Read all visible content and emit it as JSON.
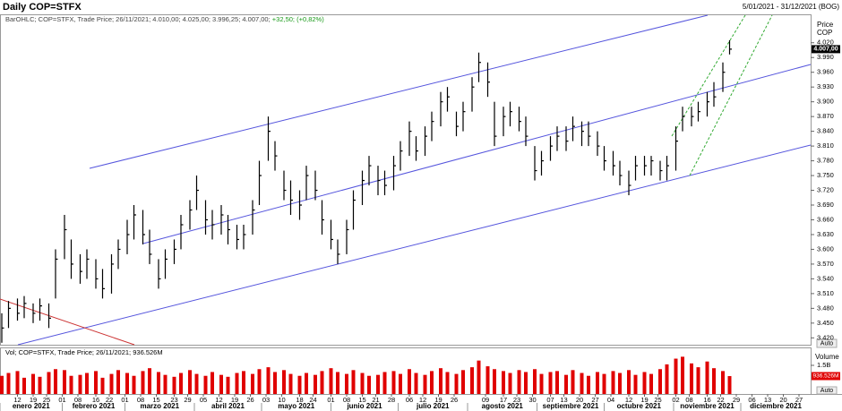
{
  "ui": {
    "auto": "Auto"
  },
  "chart_data": [
    {
      "type": "ohlc",
      "title": "Daily COP=STFX",
      "date_range": "5/01/2021 - 31/12/2021 (BOG)",
      "subtitle": "BarOHLC; COP=STFX, Trade Price; 26/11/2021; 4.010,00; 4.025,00; 3.996,25; 4.007,00;",
      "change": "+32,50; (+0,82%)",
      "y_axis_label": [
        "Price",
        "COP"
      ],
      "color": "#000000",
      "last_label": "4.007,00",
      "xlim": [
        "2021-01-05",
        "2021-12-31"
      ],
      "ylim": [
        3406,
        4076
      ],
      "x": [
        "2021-01-05",
        "2021-01-08",
        "2021-01-12",
        "2021-01-15",
        "2021-01-19",
        "2021-01-22",
        "2021-01-26",
        "2021-01-29",
        "2021-02-02",
        "2021-02-05",
        "2021-02-09",
        "2021-02-12",
        "2021-02-16",
        "2021-02-19",
        "2021-02-23",
        "2021-02-26",
        "2021-03-02",
        "2021-03-05",
        "2021-03-09",
        "2021-03-12",
        "2021-03-16",
        "2021-03-19",
        "2021-03-23",
        "2021-03-26",
        "2021-03-30",
        "2021-04-02",
        "2021-04-06",
        "2021-04-09",
        "2021-04-13",
        "2021-04-16",
        "2021-04-20",
        "2021-04-23",
        "2021-04-27",
        "2021-04-30",
        "2021-05-04",
        "2021-05-07",
        "2021-05-11",
        "2021-05-14",
        "2021-05-18",
        "2021-05-21",
        "2021-05-25",
        "2021-05-28",
        "2021-06-01",
        "2021-06-04",
        "2021-06-08",
        "2021-06-11",
        "2021-06-15",
        "2021-06-18",
        "2021-06-22",
        "2021-06-25",
        "2021-06-29",
        "2021-07-02",
        "2021-07-06",
        "2021-07-09",
        "2021-07-13",
        "2021-07-16",
        "2021-07-20",
        "2021-07-23",
        "2021-07-27",
        "2021-07-30",
        "2021-08-03",
        "2021-08-06",
        "2021-08-10",
        "2021-08-13",
        "2021-08-17",
        "2021-08-20",
        "2021-08-24",
        "2021-08-27",
        "2021-08-31",
        "2021-09-03",
        "2021-09-07",
        "2021-09-10",
        "2021-09-14",
        "2021-09-17",
        "2021-09-21",
        "2021-09-24",
        "2021-09-28",
        "2021-10-01",
        "2021-10-05",
        "2021-10-08",
        "2021-10-12",
        "2021-10-15",
        "2021-10-19",
        "2021-10-22",
        "2021-10-26",
        "2021-10-29",
        "2021-11-02",
        "2021-11-05",
        "2021-11-09",
        "2021-11-12",
        "2021-11-16",
        "2021-11-19",
        "2021-11-23",
        "2021-11-26"
      ],
      "high": [
        3470,
        3495,
        3500,
        3505,
        3490,
        3500,
        3490,
        3600,
        3670,
        3620,
        3590,
        3600,
        3580,
        3560,
        3590,
        3620,
        3660,
        3690,
        3680,
        3640,
        3580,
        3600,
        3620,
        3670,
        3700,
        3750,
        3700,
        3680,
        3690,
        3670,
        3650,
        3650,
        3700,
        3780,
        3870,
        3820,
        3760,
        3740,
        3720,
        3770,
        3760,
        3700,
        3660,
        3620,
        3660,
        3720,
        3760,
        3790,
        3770,
        3760,
        3790,
        3820,
        3860,
        3830,
        3850,
        3880,
        3920,
        3930,
        3880,
        3900,
        3950,
        4000,
        3980,
        3900,
        3890,
        3900,
        3890,
        3870,
        3810,
        3800,
        3830,
        3850,
        3850,
        3870,
        3860,
        3860,
        3840,
        3810,
        3800,
        3780,
        3760,
        3790,
        3790,
        3790,
        3780,
        3790,
        3850,
        3890,
        3890,
        3900,
        3920,
        3940,
        3980,
        4025
      ],
      "low": [
        3410,
        3440,
        3455,
        3460,
        3450,
        3455,
        3440,
        3500,
        3580,
        3540,
        3530,
        3540,
        3520,
        3500,
        3510,
        3560,
        3590,
        3620,
        3610,
        3570,
        3520,
        3540,
        3570,
        3600,
        3640,
        3680,
        3630,
        3620,
        3630,
        3610,
        3600,
        3600,
        3630,
        3690,
        3780,
        3760,
        3700,
        3670,
        3660,
        3700,
        3700,
        3630,
        3600,
        3570,
        3590,
        3640,
        3690,
        3730,
        3710,
        3710,
        3720,
        3760,
        3790,
        3780,
        3790,
        3820,
        3850,
        3880,
        3830,
        3840,
        3880,
        3940,
        3910,
        3810,
        3830,
        3850,
        3840,
        3810,
        3740,
        3750,
        3780,
        3800,
        3800,
        3820,
        3810,
        3810,
        3790,
        3760,
        3750,
        3730,
        3710,
        3740,
        3750,
        3750,
        3740,
        3740,
        3760,
        3840,
        3850,
        3860,
        3870,
        3890,
        3920,
        3996.25
      ],
      "close": [
        3440,
        3480,
        3470,
        3490,
        3470,
        3485,
        3460,
        3580,
        3640,
        3570,
        3555,
        3580,
        3540,
        3520,
        3570,
        3600,
        3630,
        3670,
        3630,
        3590,
        3540,
        3580,
        3600,
        3650,
        3680,
        3720,
        3660,
        3650,
        3670,
        3640,
        3620,
        3630,
        3680,
        3750,
        3840,
        3790,
        3720,
        3700,
        3690,
        3750,
        3720,
        3660,
        3620,
        3590,
        3640,
        3700,
        3740,
        3770,
        3740,
        3730,
        3770,
        3800,
        3840,
        3800,
        3830,
        3860,
        3900,
        3910,
        3850,
        3880,
        3930,
        3980,
        3940,
        3830,
        3870,
        3880,
        3860,
        3830,
        3760,
        3780,
        3810,
        3830,
        3820,
        3850,
        3840,
        3830,
        3810,
        3780,
        3770,
        3750,
        3730,
        3770,
        3770,
        3780,
        3760,
        3770,
        3820,
        3870,
        3870,
        3880,
        3900,
        3910,
        3960,
        4007
      ],
      "yticks": [
        {
          "value": 4020,
          "label": "4.020"
        },
        {
          "value": 3990,
          "label": "3.990"
        },
        {
          "value": 3960,
          "label": "3.960"
        },
        {
          "value": 3930,
          "label": "3.930"
        },
        {
          "value": 3900,
          "label": "3.900"
        },
        {
          "value": 3870,
          "label": "3.870"
        },
        {
          "value": 3840,
          "label": "3.840"
        },
        {
          "value": 3810,
          "label": "3.810"
        },
        {
          "value": 3780,
          "label": "3.780"
        },
        {
          "value": 3750,
          "label": "3.750"
        },
        {
          "value": 3720,
          "label": "3.720"
        },
        {
          "value": 3690,
          "label": "3.690"
        },
        {
          "value": 3660,
          "label": "3.660"
        },
        {
          "value": 3630,
          "label": "3.630"
        },
        {
          "value": 3600,
          "label": "3.600"
        },
        {
          "value": 3570,
          "label": "3.570"
        },
        {
          "value": 3540,
          "label": "3.540"
        },
        {
          "value": 3510,
          "label": "3.510"
        },
        {
          "value": 3480,
          "label": "3.480"
        },
        {
          "value": 3450,
          "label": "3.450"
        },
        {
          "value": 3420,
          "label": "3.420"
        }
      ],
      "xticks": [
        {
          "value": "2021-01-12",
          "label": "12"
        },
        {
          "value": "2021-01-19",
          "label": "19"
        },
        {
          "value": "2021-01-25",
          "label": "25"
        },
        {
          "value": "2021-02-01",
          "label": "01"
        },
        {
          "value": "2021-02-08",
          "label": "08"
        },
        {
          "value": "2021-02-16",
          "label": "16"
        },
        {
          "value": "2021-02-22",
          "label": "22"
        },
        {
          "value": "2021-03-01",
          "label": "01"
        },
        {
          "value": "2021-03-08",
          "label": "08"
        },
        {
          "value": "2021-03-15",
          "label": "15"
        },
        {
          "value": "2021-03-23",
          "label": "23"
        },
        {
          "value": "2021-03-29",
          "label": "29"
        },
        {
          "value": "2021-04-05",
          "label": "05"
        },
        {
          "value": "2021-04-12",
          "label": "12"
        },
        {
          "value": "2021-04-19",
          "label": "19"
        },
        {
          "value": "2021-04-26",
          "label": "26"
        },
        {
          "value": "2021-05-03",
          "label": "03"
        },
        {
          "value": "2021-05-10",
          "label": "10"
        },
        {
          "value": "2021-05-18",
          "label": "18"
        },
        {
          "value": "2021-05-24",
          "label": "24"
        },
        {
          "value": "2021-06-01",
          "label": "01"
        },
        {
          "value": "2021-06-08",
          "label": "08"
        },
        {
          "value": "2021-06-15",
          "label": "15"
        },
        {
          "value": "2021-06-21",
          "label": "21"
        },
        {
          "value": "2021-06-28",
          "label": "28"
        },
        {
          "value": "2021-07-06",
          "label": "06"
        },
        {
          "value": "2021-07-12",
          "label": "12"
        },
        {
          "value": "2021-07-19",
          "label": "19"
        },
        {
          "value": "2021-07-26",
          "label": "26"
        },
        {
          "value": "2021-08-09",
          "label": "09"
        },
        {
          "value": "2021-08-17",
          "label": "17"
        },
        {
          "value": "2021-08-23",
          "label": "23"
        },
        {
          "value": "2021-08-30",
          "label": "30"
        },
        {
          "value": "2021-09-07",
          "label": "07"
        },
        {
          "value": "2021-09-13",
          "label": "13"
        },
        {
          "value": "2021-09-20",
          "label": "20"
        },
        {
          "value": "2021-09-27",
          "label": "27"
        },
        {
          "value": "2021-10-04",
          "label": "04"
        },
        {
          "value": "2021-10-12",
          "label": "12"
        },
        {
          "value": "2021-10-19",
          "label": "19"
        },
        {
          "value": "2021-10-25",
          "label": "25"
        },
        {
          "value": "2021-11-02",
          "label": "02"
        },
        {
          "value": "2021-11-08",
          "label": "08"
        },
        {
          "value": "2021-11-16",
          "label": "16"
        },
        {
          "value": "2021-11-22",
          "label": "22"
        },
        {
          "value": "2021-11-29",
          "label": "29"
        },
        {
          "value": "2021-12-06",
          "label": "06"
        },
        {
          "value": "2021-12-13",
          "label": "13"
        },
        {
          "value": "2021-12-20",
          "label": "20"
        },
        {
          "value": "2021-12-27",
          "label": "27"
        }
      ],
      "months": [
        {
          "value": "2021-01-01",
          "label": "enero 2021"
        },
        {
          "value": "2021-02-01",
          "label": "febrero 2021"
        },
        {
          "value": "2021-03-01",
          "label": "marzo 2021"
        },
        {
          "value": "2021-04-01",
          "label": "abril 2021"
        },
        {
          "value": "2021-05-01",
          "label": "mayo 2021"
        },
        {
          "value": "2021-06-01",
          "label": "junio 2021"
        },
        {
          "value": "2021-07-01",
          "label": "julio 2021"
        },
        {
          "value": "2021-08-01",
          "label": "agosto 2021"
        },
        {
          "value": "2021-09-01",
          "label": "septiembre 2021"
        },
        {
          "value": "2021-10-01",
          "label": "octubre 2021"
        },
        {
          "value": "2021-11-01",
          "label": "noviembre 2021"
        },
        {
          "value": "2021-12-01",
          "label": "diciembre 2021"
        }
      ]
    },
    {
      "type": "bar",
      "subtitle": "Vol; COP=STFX, Trade Price; 26/11/2021; 936.526M",
      "y_axis_label": "Volume",
      "color": "#e00000",
      "ylim": [
        0,
        2.25
      ],
      "yticks": [
        {
          "value": 1.5,
          "label": "1.5B"
        }
      ],
      "last_label": "936.526M",
      "values": [
        0.95,
        1.1,
        1.2,
        0.85,
        1.05,
        0.9,
        1.15,
        1.3,
        1.25,
        0.95,
        1.0,
        1.1,
        1.2,
        0.85,
        1.05,
        1.25,
        1.1,
        0.95,
        1.2,
        1.35,
        1.15,
        1.0,
        0.9,
        1.1,
        1.25,
        1.05,
        0.95,
        1.15,
        1.0,
        0.9,
        1.1,
        1.2,
        1.05,
        1.3,
        1.4,
        1.15,
        1.25,
        1.05,
        0.95,
        1.1,
        1.0,
        1.2,
        1.35,
        1.15,
        1.05,
        1.25,
        1.1,
        0.95,
        1.0,
        1.15,
        1.2,
        1.05,
        1.3,
        1.1,
        1.0,
        1.2,
        1.35,
        1.15,
        1.05,
        1.25,
        1.4,
        1.75,
        1.45,
        1.3,
        1.2,
        1.1,
        1.25,
        1.15,
        1.3,
        1.05,
        1.15,
        1.2,
        1.0,
        1.25,
        1.1,
        0.95,
        1.15,
        1.05,
        1.2,
        1.1,
        1.25,
        1.0,
        1.15,
        1.05,
        1.3,
        1.55,
        1.85,
        1.95,
        1.6,
        1.4,
        1.7,
        1.35,
        1.2,
        0.936526
      ]
    }
  ]
}
